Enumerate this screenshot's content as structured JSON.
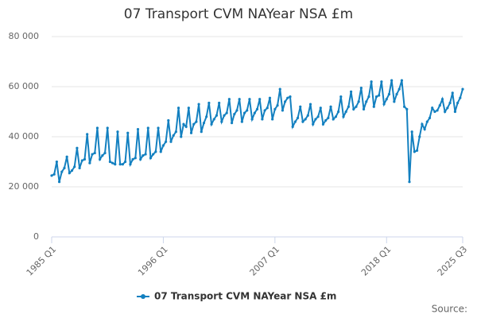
{
  "chart_data": {
    "type": "line",
    "title": "07 Transport CVM NAYear NSA £m",
    "categories": [
      "1985 Q1",
      null,
      null,
      null,
      null,
      null,
      null,
      null,
      null,
      null,
      null,
      null,
      null,
      null,
      null,
      null,
      null,
      null,
      null,
      null,
      null,
      null,
      null,
      null,
      null,
      null,
      null,
      null,
      null,
      null,
      null,
      null,
      null,
      null,
      null,
      null,
      null,
      null,
      null,
      null,
      null,
      null,
      null,
      null,
      "1996 Q1",
      null,
      null,
      null,
      null,
      null,
      null,
      null,
      null,
      null,
      null,
      null,
      null,
      null,
      null,
      null,
      null,
      null,
      null,
      null,
      null,
      null,
      null,
      null,
      null,
      null,
      null,
      null,
      null,
      null,
      null,
      null,
      null,
      null,
      null,
      null,
      null,
      null,
      null,
      null,
      null,
      null,
      null,
      null,
      "2007 Q1",
      null,
      null,
      null,
      null,
      null,
      null,
      null,
      null,
      null,
      null,
      null,
      null,
      null,
      null,
      null,
      null,
      null,
      null,
      null,
      null,
      null,
      null,
      null,
      null,
      null,
      null,
      null,
      null,
      null,
      null,
      null,
      null,
      null,
      null,
      null,
      null,
      null,
      null,
      null,
      null,
      null,
      null,
      null,
      "2018 Q1",
      null,
      null,
      null,
      null,
      null,
      null,
      null,
      null,
      null,
      null,
      null,
      null,
      null,
      null,
      null,
      null,
      null,
      null,
      null,
      null,
      null,
      null,
      null,
      null,
      null,
      null,
      null,
      null,
      null,
      "2025 Q3"
    ],
    "series": [
      {
        "name": "07 Transport CVM NAYear NSA £m",
        "color": "#1380c0",
        "values": [
          24500,
          25000,
          30000,
          22000,
          26000,
          27500,
          32000,
          25500,
          26500,
          28000,
          35500,
          27500,
          30500,
          31000,
          41000,
          29500,
          33000,
          33500,
          43500,
          31000,
          32500,
          33500,
          43500,
          30000,
          29500,
          29000,
          42000,
          29000,
          29000,
          30000,
          41500,
          29000,
          31000,
          31500,
          43000,
          31000,
          32500,
          33000,
          43500,
          31500,
          33000,
          34000,
          43500,
          34000,
          36500,
          38000,
          46500,
          38000,
          40500,
          42000,
          51500,
          40000,
          45000,
          44000,
          51500,
          41500,
          45000,
          46000,
          53000,
          42000,
          45500,
          48000,
          53500,
          45000,
          47000,
          48500,
          53500,
          46000,
          48500,
          49500,
          55000,
          45500,
          49000,
          50500,
          55000,
          46000,
          49500,
          50500,
          55000,
          47000,
          49500,
          51000,
          55000,
          47000,
          50500,
          51500,
          55500,
          47000,
          51000,
          52500,
          59000,
          50500,
          54000,
          55500,
          56000,
          44000,
          46000,
          47500,
          52000,
          46000,
          47000,
          48500,
          53000,
          45000,
          47000,
          48000,
          51500,
          45000,
          46500,
          47500,
          52000,
          47000,
          48000,
          50000,
          56000,
          48000,
          50000,
          52000,
          58000,
          51000,
          52000,
          54000,
          59500,
          51000,
          54000,
          56000,
          62000,
          52000,
          56000,
          56500,
          62000,
          53000,
          55000,
          57000,
          62500,
          54000,
          57000,
          59000,
          62500,
          52000,
          51000,
          22000,
          42000,
          34000,
          34500,
          40000,
          45000,
          43000,
          46000,
          47500,
          51500,
          50000,
          50500,
          52500,
          55000,
          50000,
          51500,
          53500,
          57500,
          50000,
          53500,
          55500,
          59000
        ]
      }
    ],
    "ylim": [
      0,
      80000
    ],
    "yticks": [
      0,
      {
        "value": 20000,
        "label": "20 000"
      },
      {
        "value": 40000,
        "label": "40 000"
      },
      {
        "value": 60000,
        "label": "60 000"
      },
      {
        "value": 80000,
        "label": "80 000"
      }
    ],
    "grid": true,
    "legend": "bottom",
    "source": "Source:"
  }
}
